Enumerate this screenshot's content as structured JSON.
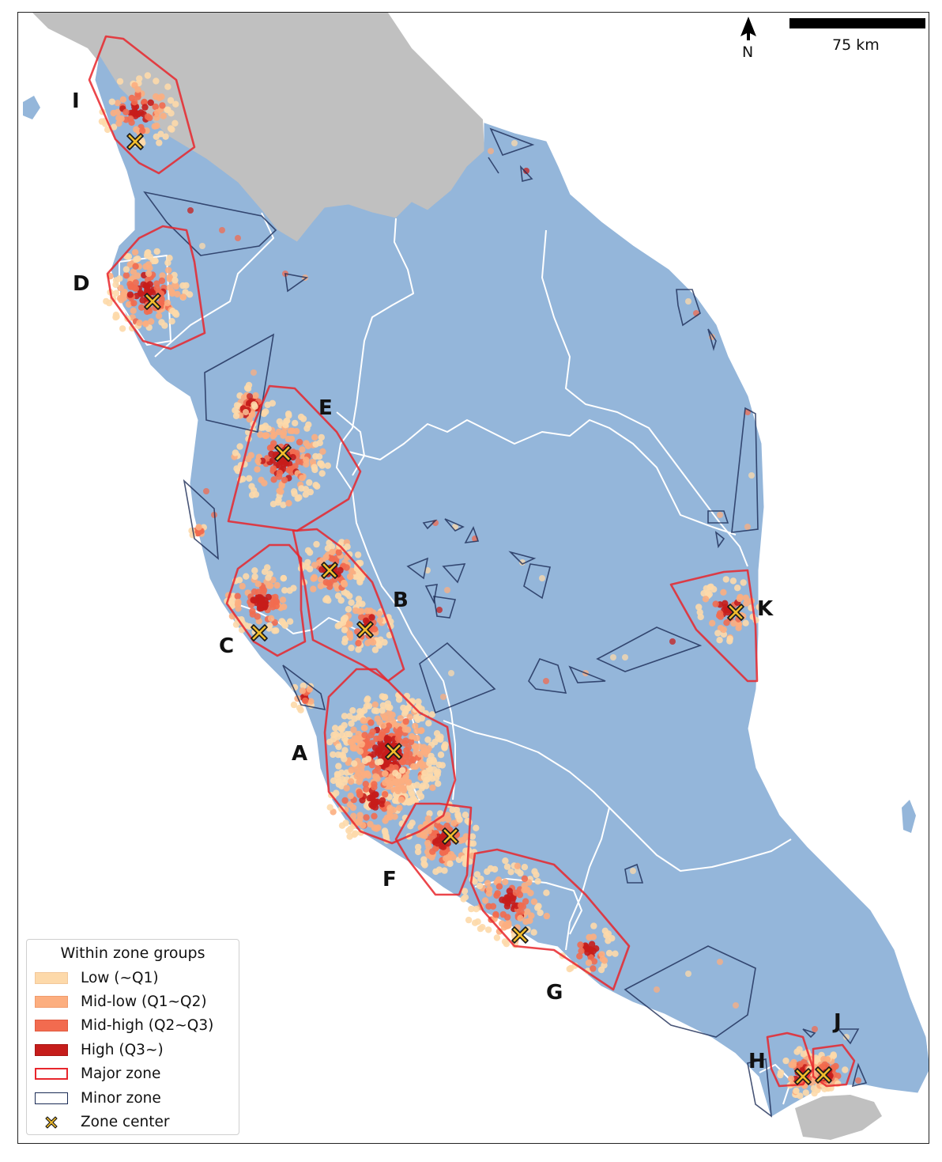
{
  "map": {
    "north_label": "N",
    "scale_bar_label": "75 km",
    "colors": {
      "sea": "#ffffff",
      "land_study": "#94b6da",
      "land_outside": "#c0c0c0",
      "boundary": "#ffffff",
      "major_zone_outline": "#e8262c",
      "minor_zone_outline": "#1a2b55",
      "center_fill": "#f2bd2c",
      "center_edge": "#1a1a1a"
    },
    "zone_labels": [
      "I",
      "D",
      "E",
      "C",
      "B",
      "A",
      "F",
      "G",
      "H",
      "J",
      "K"
    ]
  },
  "legend": {
    "title": "Within zone groups",
    "items": [
      {
        "label": "Low (~Q1)",
        "kind": "fill",
        "color": "#fdd9aa"
      },
      {
        "label": "Mid-low (Q1~Q2)",
        "kind": "fill",
        "color": "#fcae7f"
      },
      {
        "label": "Mid-high  (Q2~Q3)",
        "kind": "fill",
        "color": "#f26b4f"
      },
      {
        "label": "High (Q3~)",
        "kind": "fill",
        "color": "#c61d1b"
      },
      {
        "label": "Major zone",
        "kind": "outline",
        "color": "#e8262c"
      },
      {
        "label": "Minor zone",
        "kind": "outline",
        "color": "#1a2b55"
      },
      {
        "label": "Zone center",
        "kind": "marker",
        "color": "#f2bd2c"
      }
    ]
  }
}
